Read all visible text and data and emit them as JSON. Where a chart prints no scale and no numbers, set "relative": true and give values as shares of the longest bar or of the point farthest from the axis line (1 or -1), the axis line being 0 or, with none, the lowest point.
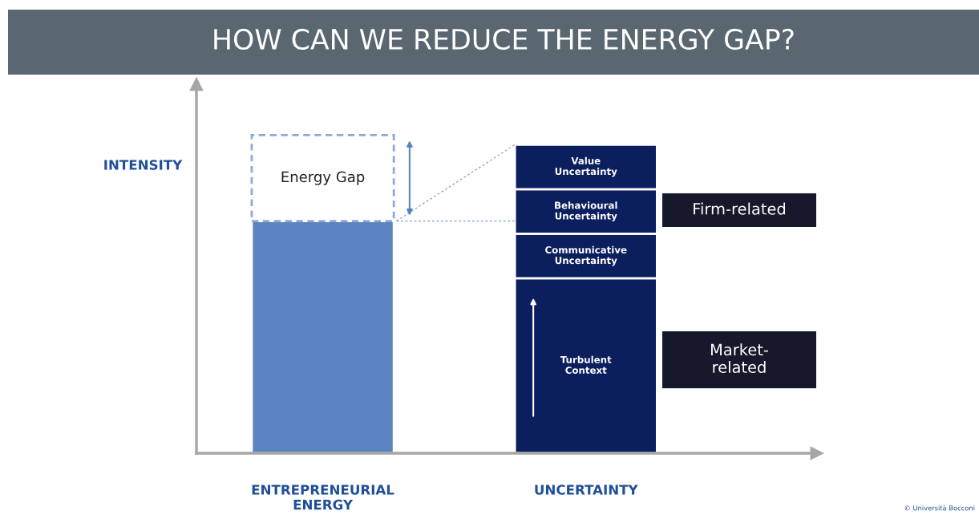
{
  "chart_data": {
    "type": "bar",
    "title": "HOW CAN WE REDUCE THE ENERGY GAP?",
    "ylabel": "INTENSITY",
    "categories": [
      "ENTREPRENEURIAL ENERGY",
      "UNCERTAINTY"
    ],
    "stacked": true,
    "relative": true,
    "tick_labels": "x",
    "series": [
      {
        "color": "#5b84c0",
        "values": [
          0.73,
          null
        ]
      },
      {
        "name": "Energy Gap",
        "color": "#8fa9d6",
        "line_style": "dashed",
        "values": [
          0.27,
          null
        ]
      },
      {
        "name": "Turbulent Context",
        "color": "#0b1f5e",
        "values": [
          null,
          0.55
        ]
      },
      {
        "name": "Communicative Uncertainty",
        "color": "#0b1f5e",
        "values": [
          null,
          0.14
        ]
      },
      {
        "name": "Behavioural Uncertainty",
        "color": "#0b1f5e",
        "values": [
          null,
          0.14
        ]
      },
      {
        "name": "Value Uncertainty",
        "color": "#0b1f5e",
        "values": [
          null,
          0.14
        ]
      }
    ],
    "annotations": [
      "Firm-related",
      "Market-related",
      "© Università Bocconi"
    ]
  }
}
